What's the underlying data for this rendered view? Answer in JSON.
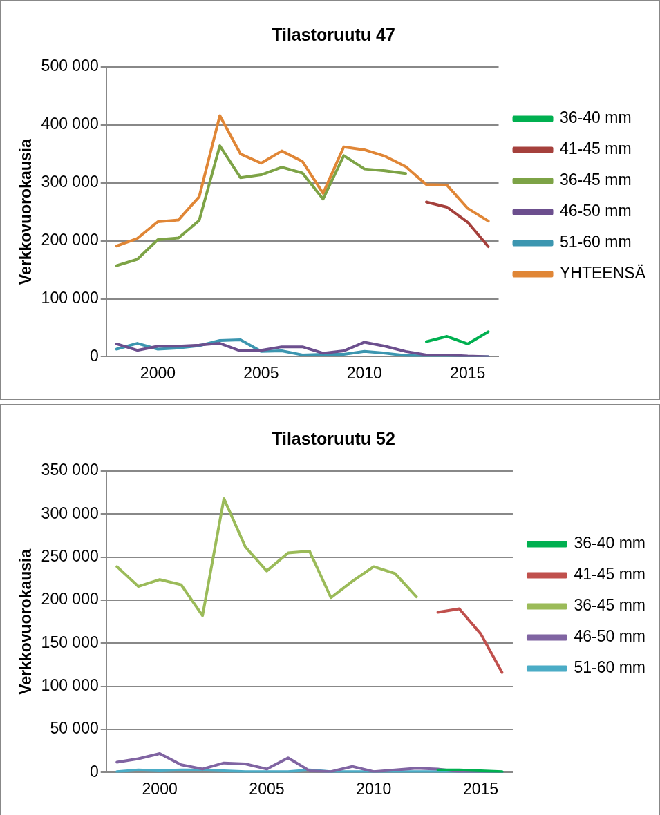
{
  "chart_data": [
    {
      "type": "line",
      "title": "Tilastoruutu 47",
      "ylabel": "Verkkovuorokausia",
      "x": [
        1998,
        1999,
        2000,
        2001,
        2002,
        2003,
        2004,
        2005,
        2006,
        2007,
        2008,
        2009,
        2010,
        2011,
        2012,
        2013,
        2014,
        2015,
        2016
      ],
      "series": [
        {
          "name": "36-40 mm",
          "color": "#00b050",
          "values": [
            null,
            null,
            null,
            null,
            null,
            null,
            null,
            null,
            null,
            null,
            null,
            null,
            null,
            null,
            null,
            26000,
            35000,
            22000,
            43000
          ]
        },
        {
          "name": "41-45 mm",
          "color": "#a5403c",
          "values": [
            null,
            null,
            null,
            null,
            null,
            null,
            null,
            null,
            null,
            null,
            null,
            null,
            null,
            null,
            null,
            267000,
            258000,
            232000,
            190000
          ]
        },
        {
          "name": "36-45 mm",
          "color": "#7da346",
          "values": [
            157000,
            168000,
            202000,
            205000,
            235000,
            364000,
            309000,
            314000,
            327000,
            317000,
            272000,
            347000,
            324000,
            321000,
            316000,
            null,
            null,
            null,
            null
          ]
        },
        {
          "name": "46-50 mm",
          "color": "#6c4f8e",
          "values": [
            22000,
            11000,
            18000,
            18000,
            20000,
            23000,
            10000,
            11000,
            17000,
            17000,
            6000,
            10000,
            25000,
            18000,
            9000,
            3000,
            3000,
            1000,
            0
          ]
        },
        {
          "name": "51-60 mm",
          "color": "#3c96b0",
          "values": [
            13000,
            23000,
            13000,
            15000,
            19000,
            28000,
            29000,
            9000,
            10000,
            3000,
            4000,
            4000,
            9000,
            6000,
            2000,
            1000,
            1000,
            0,
            0
          ]
        },
        {
          "name": "YHTEENSÄ",
          "color": "#e08636",
          "values": [
            191000,
            204000,
            233000,
            236000,
            276000,
            416000,
            350000,
            334000,
            355000,
            337000,
            282000,
            362000,
            357000,
            346000,
            328000,
            297000,
            296000,
            256000,
            234000
          ]
        }
      ],
      "xlim": [
        1997.5,
        2016.5
      ],
      "xticks": [
        2000,
        2005,
        2010,
        2015
      ],
      "ylim": [
        0,
        500000
      ],
      "yticks": [
        {
          "value": 0,
          "label": "0"
        },
        {
          "value": 100000,
          "label": "100 000"
        },
        {
          "value": 200000,
          "label": "200 000"
        },
        {
          "value": 300000,
          "label": "300 000"
        },
        {
          "value": 400000,
          "label": "400 000"
        },
        {
          "value": 500000,
          "label": "500 000"
        }
      ],
      "grid": "y",
      "legend": "right",
      "marker": "none",
      "line_style": "solid"
    },
    {
      "type": "line",
      "title": "Tilastoruutu 52",
      "ylabel": "Verkkovuorokausia",
      "x": [
        1998,
        1999,
        2000,
        2001,
        2002,
        2003,
        2004,
        2005,
        2006,
        2007,
        2008,
        2009,
        2010,
        2011,
        2012,
        2013,
        2014,
        2015,
        2016
      ],
      "series": [
        {
          "name": "36-40 mm",
          "color": "#00b050",
          "values": [
            null,
            null,
            null,
            null,
            null,
            null,
            null,
            null,
            null,
            null,
            null,
            null,
            null,
            null,
            null,
            3000,
            3000,
            2000,
            1000
          ]
        },
        {
          "name": "41-45 mm",
          "color": "#c0504d",
          "values": [
            null,
            null,
            null,
            null,
            null,
            null,
            null,
            null,
            null,
            null,
            null,
            null,
            null,
            null,
            null,
            186000,
            190000,
            161000,
            116000
          ]
        },
        {
          "name": "36-45 mm",
          "color": "#9bbb59",
          "values": [
            239000,
            216000,
            224000,
            218000,
            182000,
            318000,
            262000,
            234000,
            255000,
            257000,
            203000,
            222000,
            239000,
            231000,
            204000,
            null,
            null,
            null,
            null
          ]
        },
        {
          "name": "46-50 mm",
          "color": "#8064a2",
          "values": [
            12000,
            16000,
            22000,
            9000,
            4000,
            11000,
            10000,
            4000,
            17000,
            2000,
            1000,
            7000,
            1000,
            3000,
            5000,
            4000,
            1000,
            1000,
            0
          ]
        },
        {
          "name": "51-60 mm",
          "color": "#4bacc6",
          "values": [
            1000,
            3000,
            2000,
            3000,
            3000,
            2000,
            1000,
            1000,
            1000,
            3000,
            1000,
            1000,
            1000,
            1000,
            1000,
            1000,
            1000,
            0,
            0
          ]
        }
      ],
      "xlim": [
        1997.5,
        2016.5
      ],
      "xticks": [
        2000,
        2005,
        2010,
        2015
      ],
      "ylim": [
        0,
        350000
      ],
      "yticks": [
        {
          "value": 0,
          "label": "0"
        },
        {
          "value": 50000,
          "label": "50 000"
        },
        {
          "value": 100000,
          "label": "100 000"
        },
        {
          "value": 150000,
          "label": "150 000"
        },
        {
          "value": 200000,
          "label": "200 000"
        },
        {
          "value": 250000,
          "label": "250 000"
        },
        {
          "value": 300000,
          "label": "300 000"
        },
        {
          "value": 350000,
          "label": "350 000"
        }
      ],
      "grid": "y",
      "legend": "right",
      "marker": "none",
      "line_style": "solid"
    }
  ]
}
